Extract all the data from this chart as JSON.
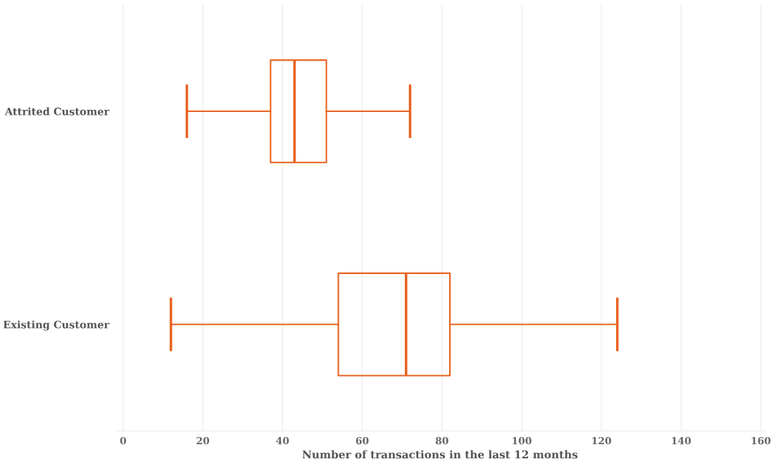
{
  "chart_data": {
    "type": "box",
    "orientation": "horizontal",
    "xlabel": "Number of transactions in the last 12 months",
    "categories": [
      "Attrited Customer",
      "Existing Customer"
    ],
    "boxes": [
      {
        "low": 16,
        "q1": 37,
        "median": 43,
        "q3": 51,
        "high": 72
      },
      {
        "low": 12,
        "q1": 54,
        "median": 71,
        "q3": 82,
        "high": 124
      }
    ],
    "color": "#e8621f",
    "xlim": [
      -2,
      161
    ],
    "xticks": [
      0,
      20,
      40,
      60,
      80,
      100,
      120,
      140,
      160
    ],
    "grid": "x"
  }
}
